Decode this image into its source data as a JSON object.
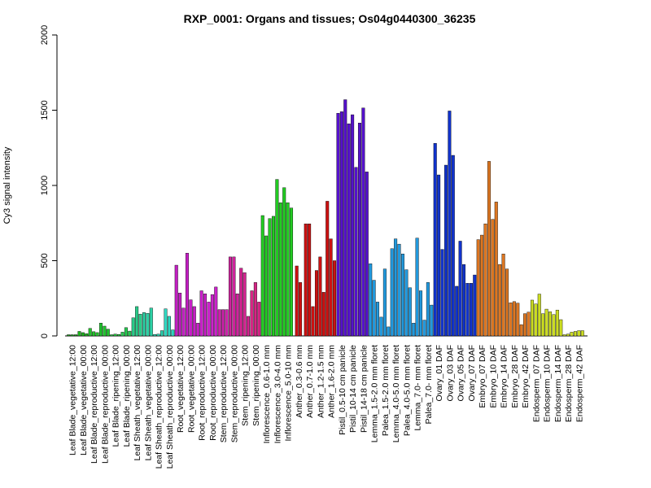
{
  "chart_data": {
    "type": "bar",
    "title": "RXP_0001: Organs and tissues; Os04g0440300_36235",
    "xlabel": "",
    "ylabel": "Cy3 signal intensity",
    "ylim": [
      0,
      2000
    ],
    "yticks": [
      0,
      500,
      1000,
      1500,
      2000
    ],
    "grid": false,
    "legend": "none",
    "groups": [
      {
        "label": "Leaf Blade_vegetative_12:00",
        "color": "#1a9e1a",
        "values": [
          8,
          8,
          8
        ]
      },
      {
        "label": "Leaf Blade_vegetative_00:00",
        "color": "#1fb51f",
        "values": [
          30,
          22,
          15
        ]
      },
      {
        "label": "Leaf Blade_reproductive_12:00",
        "color": "#22c42b",
        "values": [
          50,
          28,
          22
        ]
      },
      {
        "label": "Leaf Blade_reproductive_00:00",
        "color": "#22c430",
        "values": [
          85,
          65,
          45
        ]
      },
      {
        "label": "Leaf Blade_ripening_12:00",
        "color": "#24c83d",
        "values": [
          8,
          12,
          10
        ]
      },
      {
        "label": "Leaf Blade_ripening_00:00",
        "color": "#26c84f",
        "values": [
          25,
          55,
          32
        ]
      },
      {
        "label": "Leaf Sheath_vegetative_12:00",
        "color": "#29cc8a",
        "values": [
          120,
          195,
          145
        ]
      },
      {
        "label": "Leaf Sheath_vegetative_00:00",
        "color": "#2dd2a6",
        "values": [
          155,
          150,
          185
        ]
      },
      {
        "label": "Leaf Sheath_reproductive_12:00",
        "color": "#2dd2b0",
        "values": [
          10,
          12,
          35
        ]
      },
      {
        "label": "Leaf Sheath_reproductive_00:00",
        "color": "#2fd6c0",
        "values": [
          180,
          130,
          40
        ]
      },
      {
        "label": "Root_vegetative_12:00",
        "color": "#c21fc2",
        "values": [
          470,
          285,
          185
        ]
      },
      {
        "label": "Root_vegetative_00:00",
        "color": "#c61fc6",
        "values": [
          550,
          240,
          195
        ]
      },
      {
        "label": "Root_reproductive_12:00",
        "color": "#ca20ca",
        "values": [
          85,
          300,
          280
        ]
      },
      {
        "label": "Root_reproductive_00:00",
        "color": "#cc22cc",
        "values": [
          225,
          275,
          325
        ]
      },
      {
        "label": "Stem_reproductive_12:00",
        "color": "#cc22aa",
        "values": [
          175,
          175,
          175
        ]
      },
      {
        "label": "Stem_reproductive_00:00",
        "color": "#d0239e",
        "values": [
          525,
          525,
          280
        ]
      },
      {
        "label": "Stem_ripening_12:00",
        "color": "#d32490",
        "values": [
          450,
          420,
          130
        ]
      },
      {
        "label": "Stem_ripening_00:00",
        "color": "#d52585",
        "values": [
          300,
          355,
          225
        ]
      },
      {
        "label": "Inflorescence_0.6-1.0 mm",
        "color": "#22cc22",
        "values": [
          800,
          665,
          780
        ]
      },
      {
        "label": "Inflorescence_3.0-4.0 mm",
        "color": "#22cc22",
        "values": [
          795,
          1040,
          885
        ]
      },
      {
        "label": "Inflorescence_5.0-10 mm",
        "color": "#22cc22",
        "values": [
          985,
          885,
          850
        ]
      },
      {
        "label": "Anther_0.3-0.6 mm",
        "color": "#cc1111",
        "values": [
          465,
          355
        ]
      },
      {
        "label": "Anther_0.7-1.0 mm",
        "color": "#cc1111",
        "values": [
          745,
          745,
          195
        ]
      },
      {
        "label": "Anther_1.2-1.5 mm",
        "color": "#cc1111",
        "values": [
          435,
          525,
          290
        ]
      },
      {
        "label": "Anther_1.6-2.0 mm",
        "color": "#cc1111",
        "values": [
          895,
          645,
          500
        ]
      },
      {
        "label": "Pistil_0.5-10 cm panicle",
        "color": "#5511cc",
        "values": [
          1480,
          1490,
          1570
        ]
      },
      {
        "label": "Pistil_10-14 cm panicle",
        "color": "#5511cc",
        "values": [
          1410,
          1470,
          1120
        ]
      },
      {
        "label": "Pistil_14-18 cm panicle",
        "color": "#5511cc",
        "values": [
          1415,
          1515,
          1090
        ]
      },
      {
        "label": "Lemma_1.5-2.0 mm floret",
        "color": "#2299dd",
        "values": [
          480,
          370,
          225
        ]
      },
      {
        "label": "Palea_1.5-2.0 mm floret",
        "color": "#2299dd",
        "values": [
          125,
          445,
          60
        ]
      },
      {
        "label": "Lemma_4.0-5.0 mm floret",
        "color": "#2299dd",
        "values": [
          580,
          645,
          610
        ]
      },
      {
        "label": "Palea_4.0-5.0 mm floret",
        "color": "#2299dd",
        "values": [
          545,
          440,
          320
        ]
      },
      {
        "label": "Lemma_7.0- mm floret",
        "color": "#2299dd",
        "values": [
          85,
          650,
          300
        ]
      },
      {
        "label": "Palea_7.0- mm floret",
        "color": "#2299dd",
        "values": [
          105,
          355,
          205
        ]
      },
      {
        "label": "Ovary_01 DAF",
        "color": "#1133cc",
        "values": [
          1280,
          1070,
          575
        ]
      },
      {
        "label": "Ovary_03 DAF",
        "color": "#1133cc",
        "values": [
          1135,
          1495,
          1200
        ]
      },
      {
        "label": "Ovary_05 DAF",
        "color": "#1133cc",
        "values": [
          330,
          630,
          475
        ]
      },
      {
        "label": "Ovary_07 DAF",
        "color": "#1133cc",
        "values": [
          350,
          350,
          405
        ]
      },
      {
        "label": "Embryo_07 DAF",
        "color": "#dd7722",
        "values": [
          640,
          670,
          745
        ]
      },
      {
        "label": "Embryo_10 DAF",
        "color": "#dd7722",
        "values": [
          1160,
          775,
          890
        ]
      },
      {
        "label": "Embryo_14 DAF",
        "color": "#dd7722",
        "values": [
          475,
          545,
          445
        ]
      },
      {
        "label": "Embryo_28 DAF",
        "color": "#dd7722",
        "values": [
          220,
          228,
          218
        ]
      },
      {
        "label": "Embryo_42 DAF",
        "color": "#dd7722",
        "values": [
          75,
          148,
          158
        ]
      },
      {
        "label": "Endosperm_07 DAF",
        "color": "#ccdd22",
        "values": [
          238,
          212,
          278
        ]
      },
      {
        "label": "Endosperm_10 DAF",
        "color": "#ccdd22",
        "values": [
          148,
          178,
          160
        ]
      },
      {
        "label": "Endosperm_14 DAF",
        "color": "#ccdd22",
        "values": [
          142,
          172,
          108
        ]
      },
      {
        "label": "Endosperm_28 DAF",
        "color": "#ccdd22",
        "values": [
          8,
          12,
          25
        ]
      },
      {
        "label": "Endosperm_42 DAF",
        "color": "#ccdd22",
        "values": [
          30,
          35,
          35
        ]
      }
    ]
  }
}
